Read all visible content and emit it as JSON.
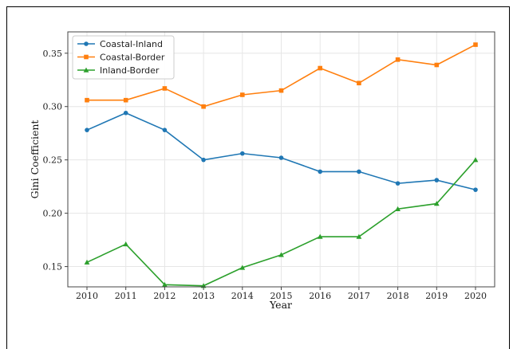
{
  "chart_data": {
    "type": "line",
    "title": "",
    "xlabel": "Year",
    "ylabel": "Gini Coefficient",
    "x": [
      2010,
      2011,
      2012,
      2013,
      2014,
      2015,
      2016,
      2017,
      2018,
      2019,
      2020
    ],
    "x_tick_labels": [
      "2010",
      "2011",
      "2012",
      "2013",
      "2014",
      "2015",
      "2016",
      "2017",
      "2018",
      "2019",
      "2020"
    ],
    "ylim": [
      0.131,
      0.37
    ],
    "y_ticks": [
      0.15,
      0.2,
      0.25,
      0.3,
      0.35
    ],
    "y_tick_labels": [
      "0.15",
      "0.20",
      "0.25",
      "0.30",
      "0.35"
    ],
    "grid": true,
    "legend_position": "top-left",
    "series": [
      {
        "name": "Coastal-Inland",
        "color": "#1f77b4",
        "marker": "circle",
        "values": [
          0.278,
          0.294,
          0.278,
          0.25,
          0.256,
          0.252,
          0.239,
          0.239,
          0.228,
          0.231,
          0.222
        ]
      },
      {
        "name": "Coastal-Border",
        "color": "#ff7f0e",
        "marker": "square",
        "values": [
          0.306,
          0.306,
          0.317,
          0.3,
          0.311,
          0.315,
          0.336,
          0.322,
          0.344,
          0.339,
          0.358
        ]
      },
      {
        "name": "Inland-Border",
        "color": "#2ca02c",
        "marker": "triangle",
        "values": [
          0.154,
          0.171,
          0.133,
          0.132,
          0.149,
          0.161,
          0.178,
          0.178,
          0.204,
          0.209,
          0.25
        ]
      }
    ]
  }
}
